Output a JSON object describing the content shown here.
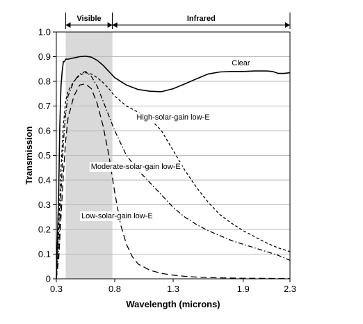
{
  "chart_data": {
    "type": "line",
    "title": "",
    "xlabel": "Wavelength (microns)",
    "ylabel": "Transmission",
    "xlim": [
      0.3,
      2.3
    ],
    "ylim": [
      0,
      1.0
    ],
    "x_tick_labels": [
      "0.3",
      "0.8",
      "1.3",
      "1.9",
      "2.3"
    ],
    "y_tick_labels": [
      "0",
      "0.1",
      "0.2",
      "0.3",
      "0.4",
      "0.5",
      "0.6",
      "0.7",
      "0.8",
      "0.9",
      "1.0"
    ],
    "grid": "horizontal",
    "bands": [
      {
        "label": "Visible",
        "from": 0.38,
        "to": 0.78,
        "shaded": true
      },
      {
        "label": "Infrared",
        "from": 0.78,
        "to": 2.3,
        "shaded": false
      }
    ],
    "series": [
      {
        "name": "Clear",
        "line_style": "solid",
        "points": [
          [
            0.3,
            0.0
          ],
          [
            0.32,
            0.35
          ],
          [
            0.33,
            0.62
          ],
          [
            0.34,
            0.78
          ],
          [
            0.35,
            0.84
          ],
          [
            0.36,
            0.88
          ],
          [
            0.37,
            0.88
          ],
          [
            0.38,
            0.89
          ],
          [
            0.4,
            0.89
          ],
          [
            0.45,
            0.895
          ],
          [
            0.5,
            0.9
          ],
          [
            0.55,
            0.902
          ],
          [
            0.6,
            0.898
          ],
          [
            0.65,
            0.885
          ],
          [
            0.7,
            0.865
          ],
          [
            0.75,
            0.84
          ],
          [
            0.8,
            0.815
          ],
          [
            0.9,
            0.785
          ],
          [
            1.0,
            0.767
          ],
          [
            1.1,
            0.76
          ],
          [
            1.2,
            0.758
          ],
          [
            1.3,
            0.77
          ],
          [
            1.4,
            0.79
          ],
          [
            1.5,
            0.81
          ],
          [
            1.6,
            0.83
          ],
          [
            1.7,
            0.838
          ],
          [
            1.8,
            0.84
          ],
          [
            1.9,
            0.84
          ],
          [
            2.0,
            0.842
          ],
          [
            2.1,
            0.842
          ],
          [
            2.15,
            0.84
          ],
          [
            2.2,
            0.832
          ],
          [
            2.25,
            0.832
          ],
          [
            2.3,
            0.835
          ]
        ]
      },
      {
        "name": "High-solar-gain low-E",
        "line_style": "short-dash",
        "points": [
          [
            0.3,
            0.0
          ],
          [
            0.32,
            0.2
          ],
          [
            0.34,
            0.45
          ],
          [
            0.36,
            0.62
          ],
          [
            0.38,
            0.72
          ],
          [
            0.4,
            0.76
          ],
          [
            0.45,
            0.8
          ],
          [
            0.5,
            0.825
          ],
          [
            0.55,
            0.835
          ],
          [
            0.6,
            0.83
          ],
          [
            0.65,
            0.815
          ],
          [
            0.7,
            0.795
          ],
          [
            0.75,
            0.77
          ],
          [
            0.8,
            0.74
          ],
          [
            0.9,
            0.7
          ],
          [
            1.0,
            0.675
          ],
          [
            1.1,
            0.65
          ],
          [
            1.2,
            0.6
          ],
          [
            1.3,
            0.52
          ],
          [
            1.4,
            0.44
          ],
          [
            1.5,
            0.37
          ],
          [
            1.6,
            0.31
          ],
          [
            1.7,
            0.26
          ],
          [
            1.8,
            0.225
          ],
          [
            1.9,
            0.195
          ],
          [
            2.0,
            0.17
          ],
          [
            2.1,
            0.145
          ],
          [
            2.2,
            0.125
          ],
          [
            2.3,
            0.11
          ]
        ]
      },
      {
        "name": "Moderate-solar-gain low-E",
        "line_style": "dash-dot",
        "points": [
          [
            0.3,
            0.0
          ],
          [
            0.32,
            0.12
          ],
          [
            0.34,
            0.35
          ],
          [
            0.36,
            0.55
          ],
          [
            0.38,
            0.67
          ],
          [
            0.4,
            0.74
          ],
          [
            0.45,
            0.8
          ],
          [
            0.5,
            0.83
          ],
          [
            0.55,
            0.84
          ],
          [
            0.6,
            0.82
          ],
          [
            0.65,
            0.78
          ],
          [
            0.7,
            0.72
          ],
          [
            0.75,
            0.66
          ],
          [
            0.8,
            0.6
          ],
          [
            0.85,
            0.55
          ],
          [
            0.9,
            0.5
          ],
          [
            1.0,
            0.44
          ],
          [
            1.1,
            0.39
          ],
          [
            1.2,
            0.34
          ],
          [
            1.3,
            0.29
          ],
          [
            1.4,
            0.25
          ],
          [
            1.5,
            0.22
          ],
          [
            1.6,
            0.195
          ],
          [
            1.7,
            0.175
          ],
          [
            1.8,
            0.155
          ],
          [
            1.9,
            0.14
          ],
          [
            2.0,
            0.125
          ],
          [
            2.1,
            0.11
          ],
          [
            2.2,
            0.095
          ],
          [
            2.3,
            0.075
          ]
        ]
      },
      {
        "name": "Low-solar-gain low-E",
        "line_style": "long-dash",
        "points": [
          [
            0.3,
            0.0
          ],
          [
            0.32,
            0.08
          ],
          [
            0.34,
            0.25
          ],
          [
            0.36,
            0.42
          ],
          [
            0.38,
            0.56
          ],
          [
            0.4,
            0.65
          ],
          [
            0.45,
            0.74
          ],
          [
            0.5,
            0.785
          ],
          [
            0.55,
            0.79
          ],
          [
            0.6,
            0.77
          ],
          [
            0.65,
            0.71
          ],
          [
            0.7,
            0.62
          ],
          [
            0.75,
            0.5
          ],
          [
            0.8,
            0.35
          ],
          [
            0.85,
            0.22
          ],
          [
            0.9,
            0.14
          ],
          [
            0.95,
            0.09
          ],
          [
            1.0,
            0.06
          ],
          [
            1.1,
            0.035
          ],
          [
            1.2,
            0.022
          ],
          [
            1.3,
            0.015
          ],
          [
            1.4,
            0.01
          ],
          [
            1.5,
            0.007
          ],
          [
            1.6,
            0.005
          ],
          [
            1.7,
            0.004
          ],
          [
            1.8,
            0.003
          ],
          [
            1.9,
            0.002
          ],
          [
            2.0,
            0.002
          ],
          [
            2.3,
            0.001
          ]
        ]
      }
    ],
    "annotations": [
      {
        "text": "Clear",
        "x": 1.88,
        "y": 0.865
      },
      {
        "text": "High-solar-gain low-E",
        "x": 1.3,
        "y": 0.645
      },
      {
        "text": "Moderate-solar-gain low-E",
        "x": 0.98,
        "y": 0.445
      },
      {
        "text": "Low-solar-gain low-E",
        "x": 0.82,
        "y": 0.245
      }
    ],
    "colors": {
      "lines": "#000000",
      "grid": "#b8b8b8",
      "band_fill": "#d9d9d9"
    }
  }
}
